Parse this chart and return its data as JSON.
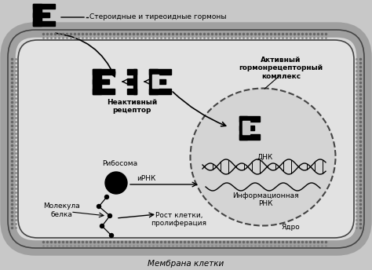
{
  "bg_color": "#c8c8c8",
  "cell_bg": "#e0e0e0",
  "title_bottom": "Мембрана клетки",
  "label_hormone": "Стероидные и тиреоидные гормоны",
  "label_inactive": "Неактивный\nрецептор",
  "label_active": "Активный\nгормонрецепторный\nкомплекс",
  "label_dna": "ДНК",
  "label_mrna_info": "Информационная\nРНК",
  "label_nucleus": "Ядро",
  "label_ribosome": "Рибосома",
  "label_mrna": "иРНК",
  "label_protein": "Молекула\nбелка",
  "label_growth": "Рост клетки,\nпролиферация",
  "font_size_main": 7.5,
  "font_size_small": 6.5,
  "font_size_label": 7
}
